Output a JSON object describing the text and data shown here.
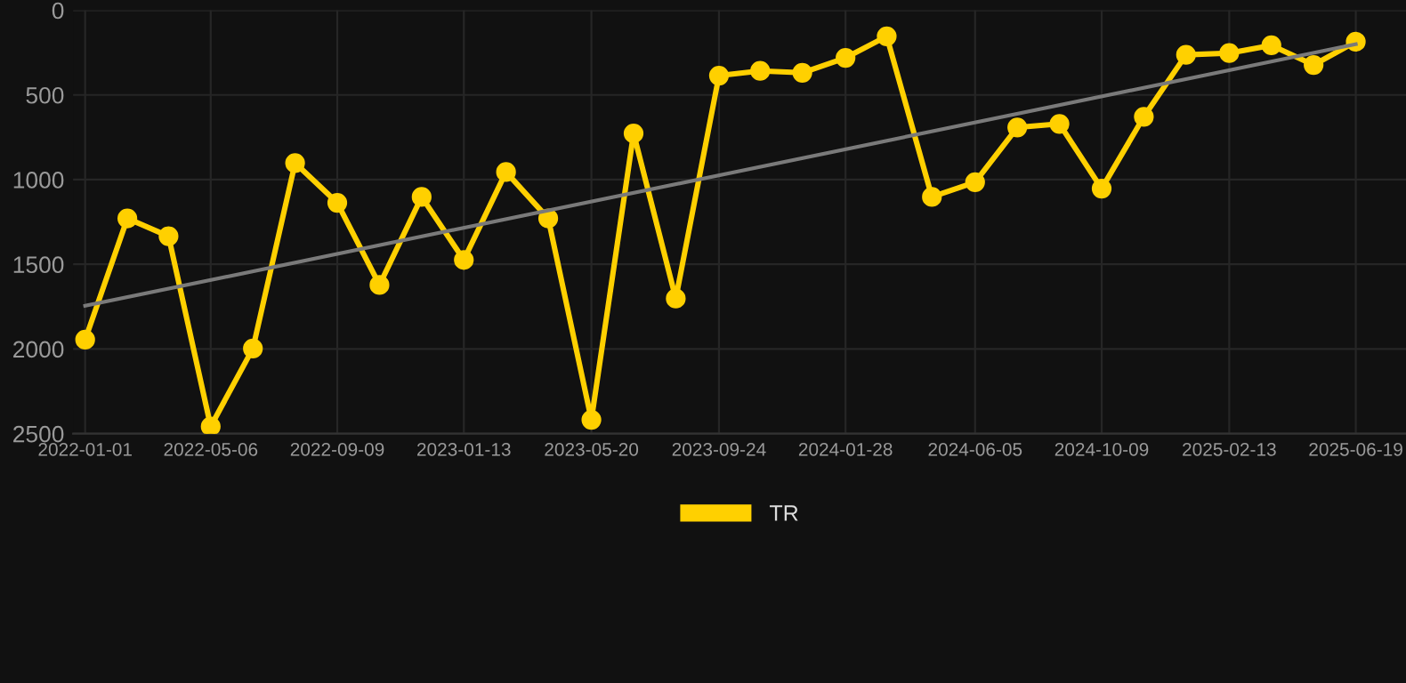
{
  "chart_data": {
    "type": "line",
    "x": [
      "2022-01-01",
      "2022-02-12",
      "2022-03-25",
      "2022-05-06",
      "2022-06-17",
      "2022-07-29",
      "2022-09-09",
      "2022-10-21",
      "2022-12-02",
      "2023-01-13",
      "2023-02-24",
      "2023-04-07",
      "2023-05-20",
      "2023-07-01",
      "2023-08-12",
      "2023-09-24",
      "2023-11-04",
      "2023-12-16",
      "2024-01-28",
      "2024-03-09",
      "2024-04-23",
      "2024-06-05",
      "2024-07-17",
      "2024-08-28",
      "2024-10-09",
      "2024-11-20",
      "2025-01-01",
      "2025-02-13",
      "2025-03-27",
      "2025-05-08",
      "2025-06-19"
    ],
    "series": [
      {
        "name": "TR",
        "color": "#ffd000",
        "marker": "circle",
        "values": [
          1945,
          1229,
          1334,
          2457,
          1997,
          902,
          1137,
          1622,
          1102,
          1474,
          955,
          1229,
          2418,
          727,
          1702,
          386,
          358,
          369,
          281,
          154,
          1102,
          1015,
          692,
          671,
          1053,
          629,
          263,
          253,
          207,
          323,
          186
        ]
      },
      {
        "type": "line",
        "color": "#7a7a7a",
        "marker": "none",
        "x": [
          "2022-01-01",
          "2025-06-19"
        ],
        "values": [
          1745,
          200
        ]
      }
    ],
    "ylim": [
      2500,
      0
    ],
    "yticks": [
      0,
      500,
      1000,
      1500,
      2000,
      2500
    ],
    "xlim": [
      "2021-12-20",
      "2025-08-08"
    ],
    "xticks": [
      "2022-01-01",
      "2022-05-06",
      "2022-09-09",
      "2023-01-13",
      "2023-05-20",
      "2023-09-24",
      "2024-01-28",
      "2024-06-05",
      "2024-10-09",
      "2025-02-13",
      "2025-06-19"
    ],
    "grid": true,
    "legend": "bottom",
    "line_style": "solid"
  }
}
